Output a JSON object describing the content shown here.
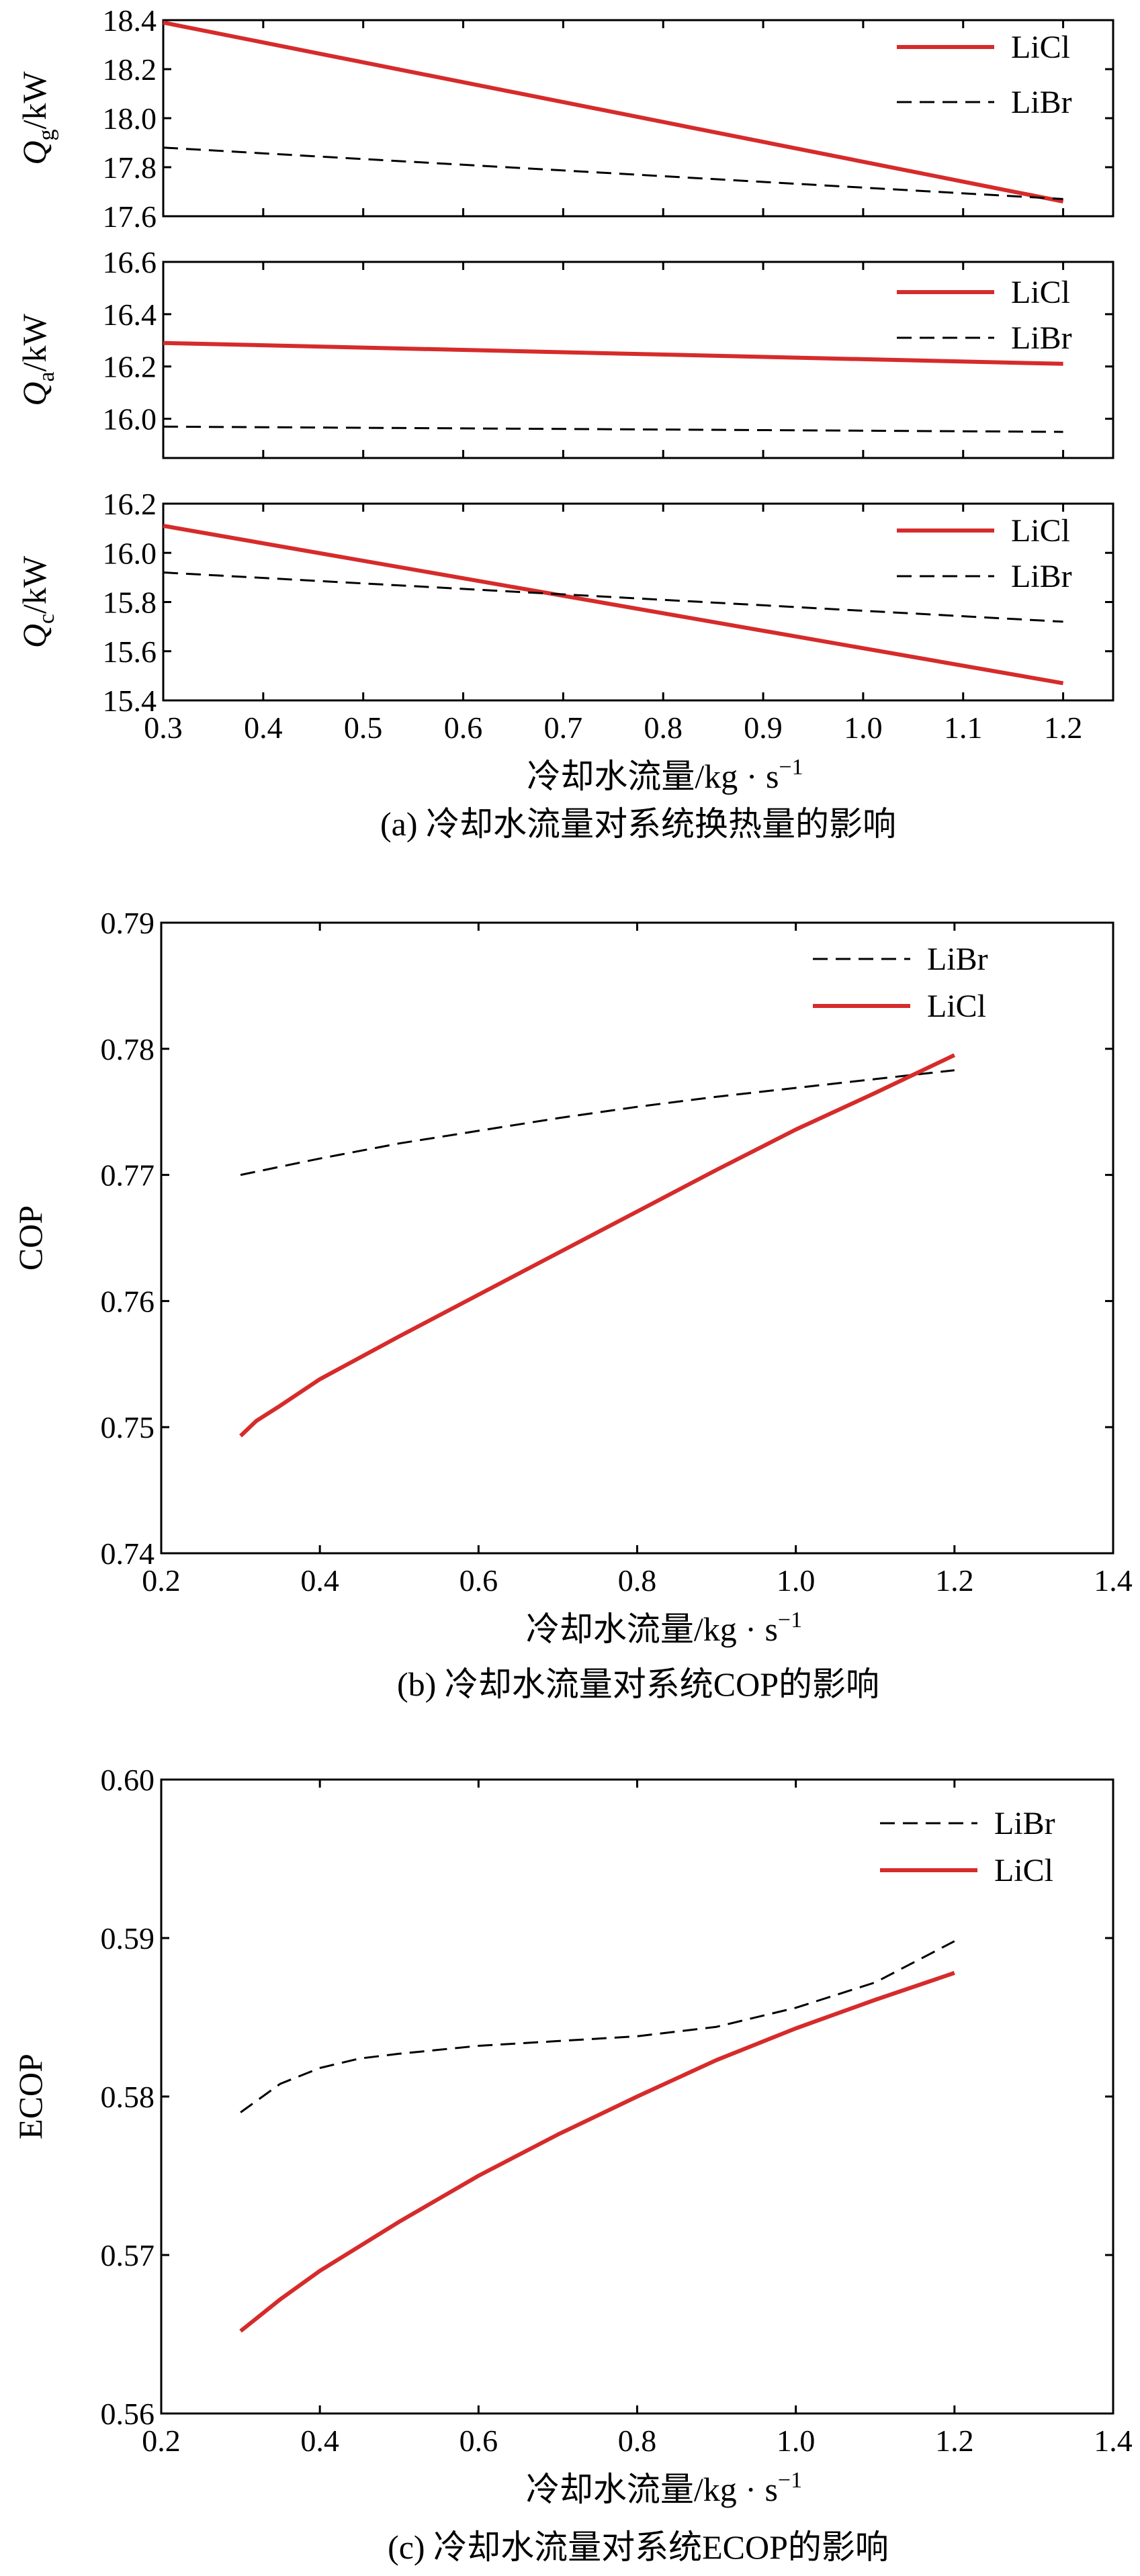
{
  "figure": {
    "caption_a": "(a) 冷却水流量对系统换热量的影响",
    "caption_b": "(b)  冷却水流量对系统COP的影响",
    "caption_c": "(c) 冷却水流量对系统ECOP的影响"
  },
  "colors": {
    "LiCl": "#d62b2b",
    "LiBr": "#000000"
  },
  "chart_data": [
    {
      "type": "line",
      "subplot": "(a) top",
      "xlabel": "",
      "ylabel": "Q_g/kW",
      "ylabel_parts": {
        "base": "Q",
        "sub": "g",
        "unit": "/kW"
      },
      "xlim": [
        0.3,
        1.25
      ],
      "ylim": [
        17.6,
        18.4
      ],
      "yticks": [
        17.6,
        17.8,
        18.0,
        18.2,
        18.4
      ],
      "ytick_labels": [
        "17.6",
        "17.8",
        "18.0",
        "18.2",
        "18.4"
      ],
      "legend": "top-right",
      "series": [
        {
          "name": "LiCl",
          "style": "solid",
          "x": [
            0.3,
            1.2
          ],
          "y": [
            18.39,
            17.66
          ]
        },
        {
          "name": "LiBr",
          "style": "dashed",
          "x": [
            0.3,
            1.2
          ],
          "y": [
            17.88,
            17.67
          ]
        }
      ]
    },
    {
      "type": "line",
      "subplot": "(a) middle",
      "xlabel": "",
      "ylabel": "Q_a/kW",
      "ylabel_parts": {
        "base": "Q",
        "sub": "a",
        "unit": "/kW"
      },
      "xlim": [
        0.3,
        1.25
      ],
      "ylim": [
        15.85,
        16.6
      ],
      "yticks": [
        16.0,
        16.2,
        16.4,
        16.6
      ],
      "ytick_labels": [
        "16.0",
        "16.2",
        "16.4",
        "16.6"
      ],
      "legend": "top-right",
      "series": [
        {
          "name": "LiCl",
          "style": "solid",
          "x": [
            0.3,
            1.2
          ],
          "y": [
            16.29,
            16.21
          ]
        },
        {
          "name": "LiBr",
          "style": "dashed",
          "x": [
            0.3,
            1.2
          ],
          "y": [
            15.97,
            15.95
          ]
        }
      ]
    },
    {
      "type": "line",
      "subplot": "(a) bottom",
      "xlabel": "冷却水流量/kg · s",
      "xlabel_sup": "−1",
      "ylabel": "Q_c/kW",
      "ylabel_parts": {
        "base": "Q",
        "sub": "c",
        "unit": "/kW"
      },
      "xlim": [
        0.3,
        1.25
      ],
      "ylim": [
        15.4,
        16.2
      ],
      "xticks": [
        0.3,
        0.4,
        0.5,
        0.6,
        0.7,
        0.8,
        0.9,
        1.0,
        1.1,
        1.2
      ],
      "xtick_labels": [
        "0.3",
        "0.4",
        "0.5",
        "0.6",
        "0.7",
        "0.8",
        "0.9",
        "1.0",
        "1.1",
        "1.2"
      ],
      "yticks": [
        15.4,
        15.6,
        15.8,
        16.0,
        16.2
      ],
      "ytick_labels": [
        "15.4",
        "15.6",
        "15.8",
        "16.0",
        "16.2"
      ],
      "legend": "top-right",
      "series": [
        {
          "name": "LiCl",
          "style": "solid",
          "x": [
            0.3,
            1.2
          ],
          "y": [
            16.11,
            15.47
          ]
        },
        {
          "name": "LiBr",
          "style": "dashed",
          "x": [
            0.3,
            1.2
          ],
          "y": [
            15.92,
            15.72
          ]
        }
      ]
    },
    {
      "type": "line",
      "subplot": "(b)",
      "xlabel": "冷却水流量/kg · s",
      "xlabel_sup": "−1",
      "ylabel": "COP",
      "xlim": [
        0.2,
        1.4
      ],
      "ylim": [
        0.74,
        0.79
      ],
      "xticks": [
        0.2,
        0.4,
        0.6,
        0.8,
        1.0,
        1.2,
        1.4
      ],
      "xtick_labels": [
        "0.2",
        "0.4",
        "0.6",
        "0.8",
        "1.0",
        "1.2",
        "1.4"
      ],
      "yticks": [
        0.74,
        0.75,
        0.76,
        0.77,
        0.78,
        0.79
      ],
      "ytick_labels": [
        "0.74",
        "0.75",
        "0.76",
        "0.77",
        "0.78",
        "0.79"
      ],
      "legend": "top-right",
      "series": [
        {
          "name": "LiBr",
          "style": "dashed",
          "x": [
            0.3,
            0.4,
            0.5,
            0.6,
            0.7,
            0.8,
            0.9,
            1.0,
            1.1,
            1.2
          ],
          "y": [
            0.77,
            0.7713,
            0.7725,
            0.7735,
            0.7745,
            0.7754,
            0.7762,
            0.7769,
            0.7776,
            0.7783
          ]
        },
        {
          "name": "LiCl",
          "style": "solid",
          "x": [
            0.3,
            0.32,
            0.35,
            0.4,
            0.5,
            0.6,
            0.7,
            0.8,
            0.9,
            1.0,
            1.1,
            1.2
          ],
          "y": [
            0.7493,
            0.7505,
            0.7517,
            0.7538,
            0.7572,
            0.7605,
            0.7638,
            0.7671,
            0.7704,
            0.7736,
            0.7765,
            0.7795
          ]
        }
      ]
    },
    {
      "type": "line",
      "subplot": "(c)",
      "xlabel": "冷却水流量/kg · s",
      "xlabel_sup": "−1",
      "ylabel": "ECOP",
      "xlim": [
        0.2,
        1.4
      ],
      "ylim": [
        0.56,
        0.6
      ],
      "xticks": [
        0.2,
        0.4,
        0.6,
        0.8,
        1.0,
        1.2,
        1.4
      ],
      "xtick_labels": [
        "0.2",
        "0.4",
        "0.6",
        "0.8",
        "1.0",
        "1.2",
        "1.4"
      ],
      "yticks": [
        0.56,
        0.57,
        0.58,
        0.59,
        0.6
      ],
      "ytick_labels": [
        "0.56",
        "0.57",
        "0.58",
        "0.59",
        "0.60"
      ],
      "legend": "top-right",
      "series": [
        {
          "name": "LiBr",
          "style": "dashed",
          "x": [
            0.3,
            0.35,
            0.4,
            0.45,
            0.5,
            0.6,
            0.7,
            0.8,
            0.9,
            1.0,
            1.1,
            1.2
          ],
          "y": [
            0.579,
            0.5808,
            0.5818,
            0.5824,
            0.5827,
            0.5832,
            0.5835,
            0.5838,
            0.5844,
            0.5856,
            0.5872,
            0.5898
          ]
        },
        {
          "name": "LiCl",
          "style": "solid",
          "x": [
            0.3,
            0.35,
            0.4,
            0.5,
            0.6,
            0.7,
            0.8,
            0.9,
            1.0,
            1.1,
            1.2
          ],
          "y": [
            0.5652,
            0.5672,
            0.569,
            0.5721,
            0.575,
            0.5776,
            0.58,
            0.5823,
            0.5843,
            0.5861,
            0.5878
          ]
        }
      ]
    }
  ]
}
